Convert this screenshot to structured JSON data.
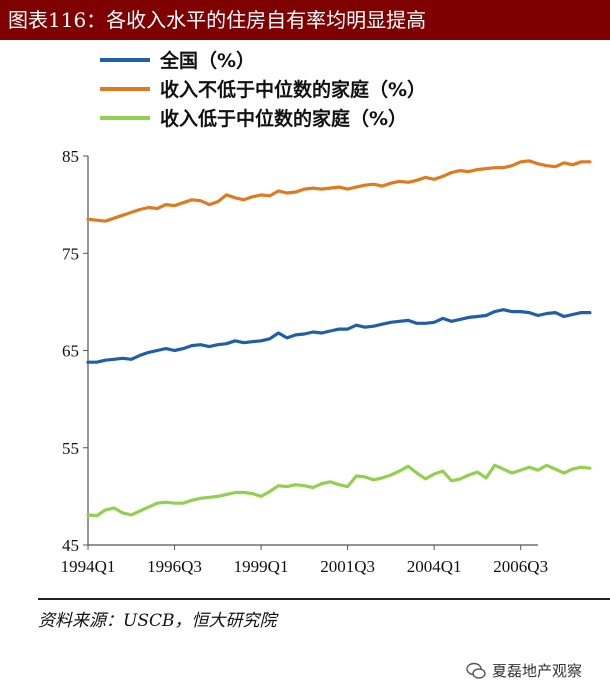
{
  "figure_title": "图表116：各收入水平的住房自有率均明显提高",
  "source": "资料来源：USCB，恒大研究院",
  "watermark": "夏磊地产观察",
  "colors": {
    "total": "#1f5fa8",
    "above_median": "#e07a1f",
    "below_median": "#92d050",
    "title_bg": "#7f0000"
  },
  "chart_data": {
    "type": "line",
    "title": "各收入水平的住房自有率均明显提高",
    "xlabel": "",
    "ylabel": "",
    "ylim": [
      45,
      85
    ],
    "yticks": [
      45,
      55,
      65,
      75,
      85
    ],
    "x_range": [
      "1994Q1",
      "2007Q1"
    ],
    "xtick_labels": [
      "1994Q1",
      "1996Q3",
      "1999Q1",
      "2001Q3",
      "2004Q1",
      "2006Q3"
    ],
    "legend_position": "top-left",
    "grid": false,
    "series": [
      {
        "name": "全国（%）",
        "color_key": "total",
        "values": [
          63.8,
          63.8,
          64.0,
          64.1,
          64.2,
          64.1,
          64.5,
          64.8,
          65.0,
          65.2,
          65.0,
          65.2,
          65.5,
          65.6,
          65.4,
          65.6,
          65.7,
          66.0,
          65.8,
          65.9,
          66.0,
          66.2,
          66.8,
          66.3,
          66.6,
          66.7,
          66.9,
          66.8,
          67.0,
          67.2,
          67.2,
          67.6,
          67.4,
          67.5,
          67.7,
          67.9,
          68.0,
          68.1,
          67.8,
          67.8,
          67.9,
          68.3,
          68.0,
          68.2,
          68.4,
          68.5,
          68.6,
          69.0,
          69.2,
          69.0,
          69.0,
          68.9,
          68.6,
          68.8,
          68.9,
          68.5,
          68.7,
          68.9,
          68.9
        ]
      },
      {
        "name": "收入不低于中位数的家庭（%）",
        "color_key": "above_median",
        "values": [
          78.5,
          78.4,
          78.3,
          78.6,
          78.9,
          79.2,
          79.5,
          79.7,
          79.6,
          80.0,
          79.9,
          80.2,
          80.5,
          80.4,
          80.0,
          80.3,
          81.0,
          80.7,
          80.5,
          80.8,
          81.0,
          80.9,
          81.4,
          81.2,
          81.3,
          81.6,
          81.7,
          81.6,
          81.7,
          81.8,
          81.6,
          81.8,
          82.0,
          82.1,
          81.9,
          82.2,
          82.4,
          82.3,
          82.5,
          82.8,
          82.6,
          82.9,
          83.3,
          83.5,
          83.4,
          83.6,
          83.7,
          83.8,
          83.8,
          84.0,
          84.4,
          84.5,
          84.2,
          84.0,
          83.9,
          84.3,
          84.1,
          84.4,
          84.4
        ]
      },
      {
        "name": "收入低于中位数的家庭（%）",
        "color_key": "below_median",
        "values": [
          48.1,
          48.0,
          48.6,
          48.8,
          48.3,
          48.1,
          48.5,
          48.9,
          49.3,
          49.4,
          49.3,
          49.3,
          49.6,
          49.8,
          49.9,
          50.0,
          50.2,
          50.4,
          50.4,
          50.3,
          50.0,
          50.5,
          51.1,
          51.0,
          51.2,
          51.1,
          50.9,
          51.3,
          51.5,
          51.2,
          51.0,
          52.1,
          52.0,
          51.7,
          51.9,
          52.2,
          52.6,
          53.1,
          52.4,
          51.8,
          52.3,
          52.6,
          51.6,
          51.8,
          52.2,
          52.5,
          51.9,
          53.2,
          52.8,
          52.4,
          52.7,
          53.0,
          52.7,
          53.2,
          52.8,
          52.4,
          52.8,
          53.0,
          52.9
        ]
      }
    ]
  }
}
